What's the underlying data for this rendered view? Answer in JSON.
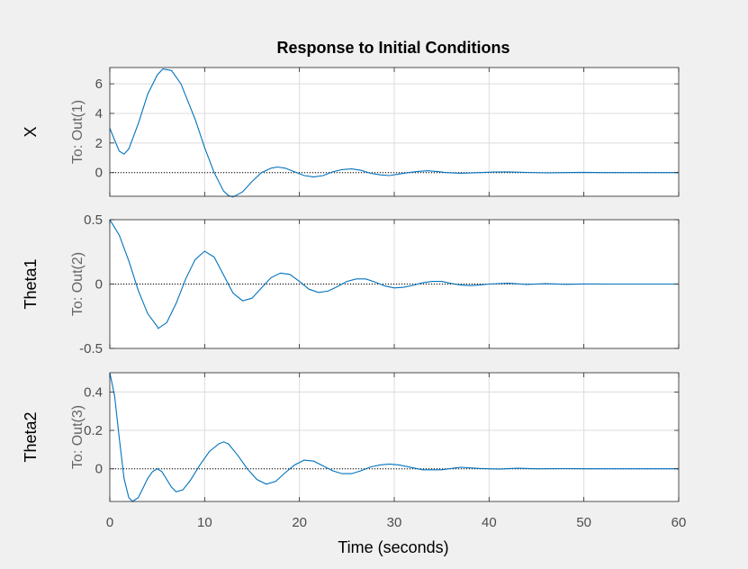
{
  "chart_data": {
    "type": "line",
    "title": "Response to Initial Conditions",
    "xlabel": "Time (seconds)",
    "xlim": [
      0,
      60
    ],
    "xticks": [
      0,
      10,
      20,
      30,
      40,
      50,
      60
    ],
    "grid": true,
    "line_color": "#0072bd",
    "axes_background": "#ffffff",
    "figure_background": "#f0f0f0",
    "subplots": [
      {
        "ylabel": "X",
        "output_label": "To: Out(1)",
        "ylim": [
          -1.6,
          7.1
        ],
        "yticks": [
          0,
          2,
          4,
          6
        ],
        "x": [
          0,
          0.5,
          1,
          1.5,
          2,
          3,
          4,
          5,
          5.6,
          6.5,
          7.5,
          9,
          10,
          11,
          12,
          12.5,
          13,
          14,
          15,
          16,
          17,
          17.7,
          18.5,
          19.5,
          20.5,
          21.5,
          22.5,
          23.5,
          24.5,
          25.5,
          26.5,
          27.5,
          28.5,
          29.5,
          30.5,
          31.5,
          32.5,
          33.5,
          34.5,
          35.5,
          37,
          39,
          40.5,
          42,
          44,
          46,
          48,
          50,
          52,
          55,
          58,
          60
        ],
        "y": [
          3.0,
          2.2,
          1.45,
          1.25,
          1.6,
          3.3,
          5.3,
          6.6,
          7.0,
          6.9,
          6.0,
          3.6,
          1.7,
          0.0,
          -1.25,
          -1.55,
          -1.65,
          -1.3,
          -0.6,
          0.0,
          0.3,
          0.38,
          0.3,
          0.05,
          -0.2,
          -0.3,
          -0.2,
          0.05,
          0.2,
          0.25,
          0.15,
          -0.05,
          -0.15,
          -0.2,
          -0.1,
          0.0,
          0.08,
          0.12,
          0.08,
          0.0,
          -0.05,
          0.0,
          0.04,
          0.05,
          0.01,
          -0.02,
          0.0,
          0.02,
          0.0,
          0.0,
          0.0,
          0.0
        ]
      },
      {
        "ylabel": "Theta1",
        "output_label": "To: Out(2)",
        "ylim": [
          -0.5,
          0.5
        ],
        "yticks": [
          -0.5,
          0,
          0.5
        ],
        "x": [
          0,
          1,
          2,
          3,
          4,
          5,
          5.1,
          6,
          7,
          8,
          9,
          10,
          11,
          12,
          13,
          14,
          15,
          16,
          17,
          18,
          19,
          20,
          21,
          22,
          23,
          24,
          25,
          26,
          27,
          28,
          29,
          30,
          31,
          32,
          33,
          34,
          35,
          36,
          37,
          38,
          39,
          40,
          42,
          44,
          46,
          48,
          50,
          53,
          56,
          60
        ],
        "y": [
          0.5,
          0.38,
          0.18,
          -0.05,
          -0.23,
          -0.33,
          -0.345,
          -0.3,
          -0.15,
          0.04,
          0.19,
          0.255,
          0.21,
          0.07,
          -0.07,
          -0.13,
          -0.11,
          -0.03,
          0.05,
          0.085,
          0.075,
          0.02,
          -0.04,
          -0.065,
          -0.055,
          -0.02,
          0.02,
          0.04,
          0.04,
          0.015,
          -0.015,
          -0.03,
          -0.025,
          -0.01,
          0.01,
          0.02,
          0.02,
          0.005,
          -0.008,
          -0.012,
          -0.008,
          0.0,
          0.006,
          -0.003,
          0.003,
          -0.002,
          0.001,
          0.0,
          0.0,
          0.0
        ]
      },
      {
        "ylabel": "Theta2",
        "output_label": "To: Out(3)",
        "ylim": [
          -0.17,
          0.5
        ],
        "yticks": [
          0,
          0.2,
          0.4
        ],
        "x": [
          0,
          0.5,
          1,
          1.5,
          2,
          2.4,
          3,
          3.5,
          4,
          4.5,
          5,
          5.5,
          6,
          6.5,
          7,
          7.7,
          8.5,
          9.5,
          10.5,
          11.5,
          12,
          12.5,
          13.5,
          14.5,
          15.5,
          16.5,
          17.5,
          18.5,
          19.5,
          20.5,
          21.5,
          22.5,
          23.5,
          24.5,
          25.5,
          26.5,
          27.5,
          28.5,
          29.5,
          30.5,
          31.5,
          33,
          35,
          37,
          39,
          41,
          43,
          45,
          48,
          51,
          55,
          60
        ],
        "y": [
          0.5,
          0.38,
          0.16,
          -0.05,
          -0.15,
          -0.17,
          -0.15,
          -0.1,
          -0.05,
          -0.015,
          0.0,
          -0.015,
          -0.055,
          -0.095,
          -0.12,
          -0.11,
          -0.06,
          0.02,
          0.09,
          0.13,
          0.14,
          0.13,
          0.07,
          0.0,
          -0.055,
          -0.08,
          -0.065,
          -0.02,
          0.02,
          0.045,
          0.04,
          0.015,
          -0.01,
          -0.025,
          -0.025,
          -0.01,
          0.01,
          0.02,
          0.025,
          0.02,
          0.01,
          -0.005,
          -0.005,
          0.008,
          0.002,
          -0.002,
          0.003,
          0.0,
          0.001,
          0.0,
          0.0,
          0.0
        ]
      }
    ]
  }
}
